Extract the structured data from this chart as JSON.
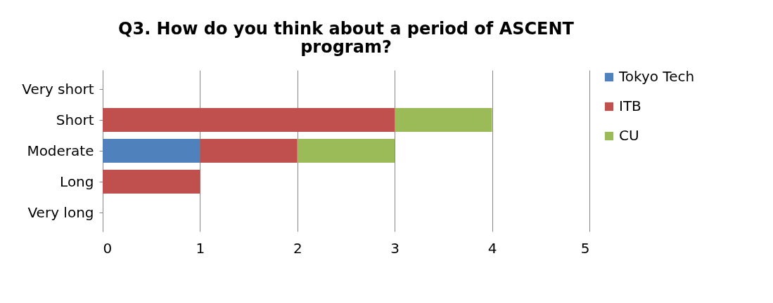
{
  "chart_data": {
    "type": "bar",
    "orientation": "horizontal",
    "stacked": true,
    "title": "Q3. How do you think about a period of ASCENT program?",
    "categories": [
      "Very short",
      "Short",
      "Moderate",
      "Long",
      "Very long"
    ],
    "series": [
      {
        "name": "Tokyo Tech",
        "color": "#4f81bd",
        "values": [
          0,
          0,
          1,
          0,
          0
        ]
      },
      {
        "name": "ITB",
        "color": "#c0504d",
        "values": [
          0,
          3,
          1,
          1,
          0
        ]
      },
      {
        "name": "CU",
        "color": "#9bbb59",
        "values": [
          0,
          1,
          1,
          0,
          0
        ]
      }
    ],
    "xlim": [
      0,
      5
    ],
    "xticks": [
      0,
      1,
      2,
      3,
      4,
      5
    ],
    "grid": "x",
    "legend": "right"
  }
}
